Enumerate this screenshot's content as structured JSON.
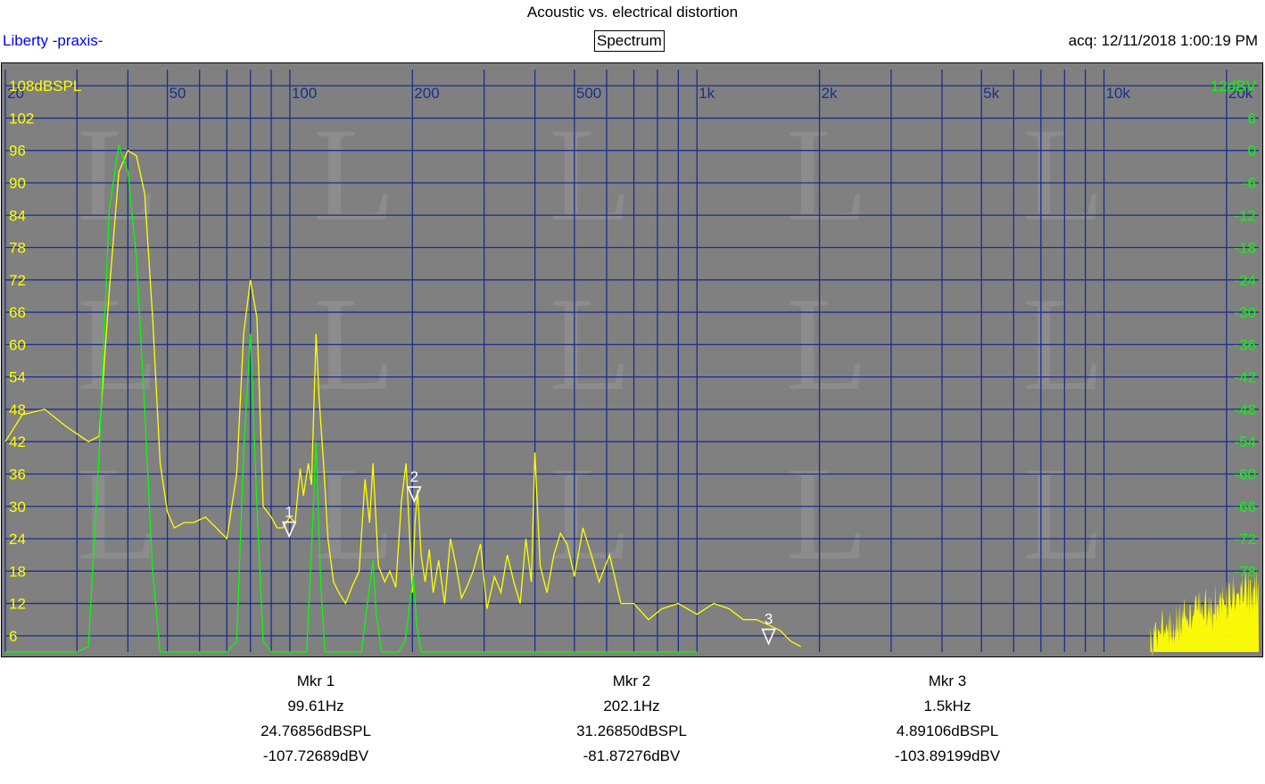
{
  "header": {
    "title": "Acoustic vs. electrical distortion",
    "app_label": "Liberty -praxis-",
    "mode_label": "Spectrum",
    "acq_label": "acq: 12/11/2018 1:00:19 PM"
  },
  "colors": {
    "plot_bg": "#808080",
    "grid": "#1a2f8c",
    "yellow_trace": "#ffff00",
    "green_trace": "#00ff00",
    "left_axis_text": "#ffff00",
    "right_axis_text": "#00ff00",
    "top_axis_text": "#1a2f8c",
    "marker": "#ffffff"
  },
  "chart_data": {
    "type": "line",
    "title": "Acoustic vs. electrical distortion",
    "x_scale": "log",
    "xlim": [
      20,
      24000
    ],
    "x_tick_labels": [
      {
        "value": 20,
        "label": "20"
      },
      {
        "value": 50,
        "label": "50"
      },
      {
        "value": 100,
        "label": "100"
      },
      {
        "value": 200,
        "label": "200"
      },
      {
        "value": 500,
        "label": "500"
      },
      {
        "value": 1000,
        "label": "1k"
      },
      {
        "value": 2000,
        "label": "2k"
      },
      {
        "value": 5000,
        "label": "5k"
      },
      {
        "value": 10000,
        "label": "10k"
      },
      {
        "value": 20000,
        "label": "20k"
      }
    ],
    "left_axis": {
      "ylim": [
        3,
        111
      ],
      "ticks": [
        {
          "value": 108,
          "label": "108dBSPL"
        },
        {
          "value": 102,
          "label": "102"
        },
        {
          "value": 96,
          "label": "96"
        },
        {
          "value": 90,
          "label": "90"
        },
        {
          "value": 84,
          "label": "84"
        },
        {
          "value": 78,
          "label": "78"
        },
        {
          "value": 72,
          "label": "72"
        },
        {
          "value": 66,
          "label": "66"
        },
        {
          "value": 60,
          "label": "60"
        },
        {
          "value": 54,
          "label": "54"
        },
        {
          "value": 48,
          "label": "48"
        },
        {
          "value": 42,
          "label": "42"
        },
        {
          "value": 36,
          "label": "36"
        },
        {
          "value": 30,
          "label": "30"
        },
        {
          "value": 24,
          "label": "24"
        },
        {
          "value": 18,
          "label": "18"
        },
        {
          "value": 12,
          "label": "12"
        },
        {
          "value": 6,
          "label": "6"
        }
      ]
    },
    "right_axis": {
      "ylim": [
        -93,
        15
      ],
      "ticks": [
        {
          "value": 12,
          "label": "12dBV"
        },
        {
          "value": 6,
          "label": "6"
        },
        {
          "value": 0,
          "label": "0"
        },
        {
          "value": -6,
          "label": "-6"
        },
        {
          "value": -12,
          "label": "-12"
        },
        {
          "value": -18,
          "label": "-18"
        },
        {
          "value": -24,
          "label": "-24"
        },
        {
          "value": -30,
          "label": "-30"
        },
        {
          "value": -36,
          "label": "-36"
        },
        {
          "value": -42,
          "label": "-42"
        },
        {
          "value": -48,
          "label": "-48"
        },
        {
          "value": -54,
          "label": "-54"
        },
        {
          "value": -60,
          "label": "-60"
        },
        {
          "value": -66,
          "label": "-66"
        },
        {
          "value": -72,
          "label": "-72"
        },
        {
          "value": -78,
          "label": "-78"
        }
      ]
    },
    "grid": true,
    "series": [
      {
        "axis": "left",
        "color": "#ffff00",
        "x": [
          20,
          22,
          25,
          28,
          32,
          34,
          36,
          38,
          40,
          42,
          44,
          46,
          48,
          50,
          52,
          55,
          58,
          62,
          66,
          70,
          74,
          77,
          80,
          83,
          86,
          90,
          93,
          96,
          100,
          103,
          106,
          108,
          111,
          113,
          116,
          118,
          121,
          124,
          128,
          132,
          137,
          142,
          148,
          153,
          157,
          160,
          165,
          171,
          176,
          182,
          188,
          193,
          197,
          200,
          203,
          206,
          210,
          215,
          220,
          225,
          232,
          240,
          248,
          256,
          264,
          272,
          282,
          294,
          305,
          318,
          330,
          342,
          355,
          368,
          380,
          392,
          400,
          412,
          428,
          445,
          462,
          480,
          500,
          525,
          550,
          575,
          610,
          650,
          700,
          760,
          820,
          900,
          1000,
          1100,
          1200,
          1300,
          1400,
          1500,
          1600,
          1700,
          1800
        ],
        "y": [
          42,
          47,
          48,
          45,
          42,
          43,
          70,
          92,
          96,
          95,
          88,
          65,
          38,
          29,
          26,
          27,
          27,
          28,
          26,
          24,
          36,
          62,
          72,
          65,
          30,
          28,
          26,
          26,
          28,
          27,
          37,
          32,
          38,
          34,
          62,
          50,
          38,
          24,
          16,
          14,
          12,
          15,
          18,
          35,
          27,
          38,
          19,
          16,
          18,
          15,
          31,
          38,
          24,
          14,
          27,
          33,
          21,
          16,
          22,
          14,
          20,
          12,
          24,
          19,
          13,
          15,
          18,
          23,
          11,
          17,
          14,
          21,
          16,
          12,
          24,
          16,
          40,
          19,
          14,
          21,
          25,
          23,
          17,
          26,
          21,
          16,
          21,
          12,
          12,
          9,
          11,
          12,
          10,
          12,
          11,
          9,
          9,
          8,
          7,
          5,
          4
        ]
      },
      {
        "axis": "left",
        "color": "#00ff00",
        "x": [
          20,
          30,
          32,
          34,
          36,
          38,
          40,
          42,
          44,
          46,
          48,
          50,
          55,
          60,
          65,
          70,
          74,
          77,
          80,
          83,
          86,
          90,
          95,
          100,
          105,
          110,
          113,
          116,
          119,
          122,
          126,
          130,
          140,
          150,
          155,
          160,
          163,
          168,
          175,
          185,
          192,
          197,
          201,
          205,
          210,
          220,
          230,
          300,
          500,
          1000
        ],
        "y": [
          3,
          3,
          4,
          40,
          85,
          97,
          92,
          76,
          48,
          18,
          3,
          3,
          3,
          3,
          3,
          3,
          5,
          40,
          62,
          30,
          5,
          3,
          3,
          3,
          3,
          3,
          22,
          42,
          16,
          3,
          3,
          3,
          3,
          3,
          12,
          20,
          10,
          3,
          3,
          3,
          5,
          12,
          17,
          8,
          3,
          3,
          3,
          3,
          3,
          3
        ]
      }
    ],
    "markers": [
      {
        "id": "1",
        "label": "Mkr 1",
        "freq": "99.61Hz",
        "spl": "24.76856dBSPL",
        "dbv": "-107.72689dBV",
        "x": 99.61,
        "y": 24.77
      },
      {
        "id": "2",
        "label": "Mkr 2",
        "freq": "202.1Hz",
        "spl": "31.26850dBSPL",
        "dbv": "-81.87276dBV",
        "x": 202.1,
        "y": 31.27
      },
      {
        "id": "3",
        "label": "Mkr 3",
        "freq": "1.5kHz",
        "spl": "4.89106dBSPL",
        "dbv": "-103.89199dBV",
        "x": 1500,
        "y": 4.89
      }
    ]
  }
}
